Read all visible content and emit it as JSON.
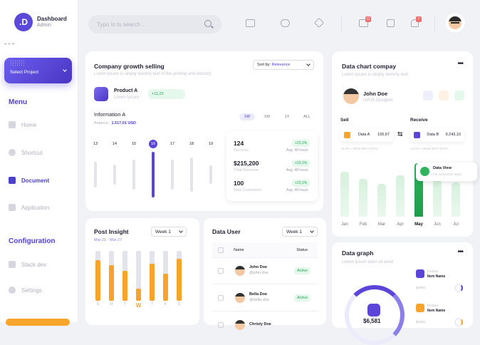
{
  "brand": {
    "logo_letter": ".D",
    "title": "Dashboard",
    "subtitle": "Admin"
  },
  "sidebar": {
    "project_label": "Select Project",
    "menu_title": "Menu",
    "menu_items": [
      {
        "label": "Home"
      },
      {
        "label": "Shortcut"
      },
      {
        "label": "Document"
      },
      {
        "label": "Application"
      }
    ],
    "config_title": "Configuration",
    "config_items": [
      {
        "label": "Stack dev"
      },
      {
        "label": "Settings"
      }
    ]
  },
  "topbar": {
    "search_placeholder": "Typo in to search ..",
    "mail_badge": "11",
    "bell_badge": "7"
  },
  "growth": {
    "title": "Company growth selling",
    "subtitle": "Lorem Ipsum is simply dummy text of the printing and industry",
    "sort_label": "Sort by:",
    "sort_value": "Relevance",
    "product_name": "Product A",
    "product_sub": "Lorem Ipsum",
    "product_change": "+11,23",
    "info_title": "Information A",
    "balance_label": "Balance :",
    "balance_value": "1.517,01 USD",
    "ranges": [
      "1W",
      "1M",
      "1Y",
      "ALL"
    ],
    "days": [
      "13",
      "14",
      "15",
      "16",
      "17",
      "18",
      "19"
    ],
    "day_levels": [
      0.55,
      0.45,
      0.65,
      1.0,
      0.65,
      0.75,
      0.4
    ],
    "stats": [
      {
        "value": "124",
        "label": "Success",
        "pct": "+23,1%",
        "hint": "Avg. 48 hours"
      },
      {
        "value": "$215,200",
        "label": "Total Revenue",
        "pct": "+23,1%",
        "hint": "Avg. 48 hours"
      },
      {
        "value": "100",
        "label": "New Customers",
        "pct": "+23,1%",
        "hint": "Avg. 48 hours"
      }
    ]
  },
  "insight": {
    "title": "Post Insight",
    "range": "Mar 21 - Mar 27",
    "week": "Week 1",
    "days": [
      "S",
      "M",
      "T",
      "W",
      "T",
      "F",
      "S"
    ],
    "levels": [
      0.82,
      0.72,
      0.6,
      0.25,
      0.75,
      0.55,
      0.85
    ]
  },
  "users": {
    "title": "Data User",
    "week": "Week 1",
    "col_name": "Name",
    "col_status": "Status",
    "rows": [
      {
        "name": "John Doe",
        "handle": "@john.doe",
        "status": "Active"
      },
      {
        "name": "Bella Doe",
        "handle": "@bella.doe",
        "status": "Active"
      },
      {
        "name": "Christy Doe",
        "handle": "",
        "status": ""
      }
    ]
  },
  "datachart": {
    "title": "Data chart compay",
    "subtitle": "Lorem Ipsum is simply dummy text",
    "person": "John Doe",
    "role": "UI/UX Designer",
    "sell_label": "Sell",
    "receive_label": "Receive",
    "data_a": "Data A",
    "data_a_val": "155,67",
    "data_b": "Data B",
    "data_b_val": "9.243,10",
    "hint": "+0,4% • VIEW INFO DATA",
    "tooltip_title": "Data View",
    "tooltip_sub": "For December Stats",
    "months": [
      "Jan",
      "Feb",
      "Mar",
      "Apr",
      "May",
      "Jun",
      "Jul"
    ],
    "levels": [
      0.72,
      0.6,
      0.52,
      0.66,
      0.85,
      0.58,
      0.54
    ],
    "active_month": "May"
  },
  "graph": {
    "title": "Data graph",
    "subtitle": "Lorem ipsum dolor sit amet",
    "total": "$6,581",
    "items": [
      {
        "label": "Product",
        "name": "Item Name",
        "val": "$20M1"
      },
      {
        "label": "Product",
        "name": "Item Name",
        "val": "$20M1"
      }
    ]
  }
}
